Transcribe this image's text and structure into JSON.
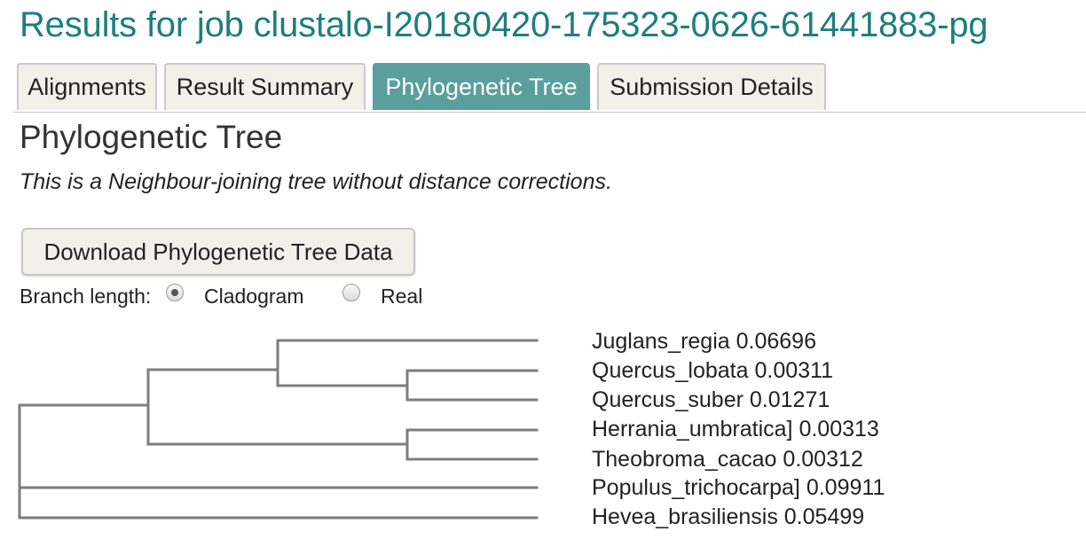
{
  "page": {
    "job_title": "Results for job clustalo-I20180420-175323-0626-61441883-pg"
  },
  "tabs": [
    {
      "label": "Alignments",
      "active": false
    },
    {
      "label": "Result Summary",
      "active": false
    },
    {
      "label": "Phylogenetic Tree",
      "active": true
    },
    {
      "label": "Submission Details",
      "active": false
    }
  ],
  "content": {
    "heading": "Phylogenetic Tree",
    "description": "This is a Neighbour-joining tree without distance corrections.",
    "download_label": "Download Phylogenetic Tree Data",
    "branch_length_label": "Branch length:",
    "branch_options": [
      {
        "label": "Cladogram",
        "checked": true
      },
      {
        "label": "Real",
        "checked": false
      }
    ]
  },
  "tree": {
    "leaves": [
      {
        "name": "Juglans_regia",
        "length": "0.06696"
      },
      {
        "name": "Quercus_lobata",
        "length": "0.00311"
      },
      {
        "name": "Quercus_suber",
        "length": "0.01271"
      },
      {
        "name": "Herrania_umbratica]",
        "length": "0.00313"
      },
      {
        "name": "Theobroma_cacao",
        "length": "0.00312"
      },
      {
        "name": "Populus_trichocarpa]",
        "length": "0.09911"
      },
      {
        "name": "Hevea_brasiliensis",
        "length": "0.05499"
      }
    ],
    "branch_color": "#7d7d7d"
  },
  "colors": {
    "title": "#1e7e7e",
    "active_tab": "#5a9e9e",
    "tab_background": "#f1f1ea"
  }
}
